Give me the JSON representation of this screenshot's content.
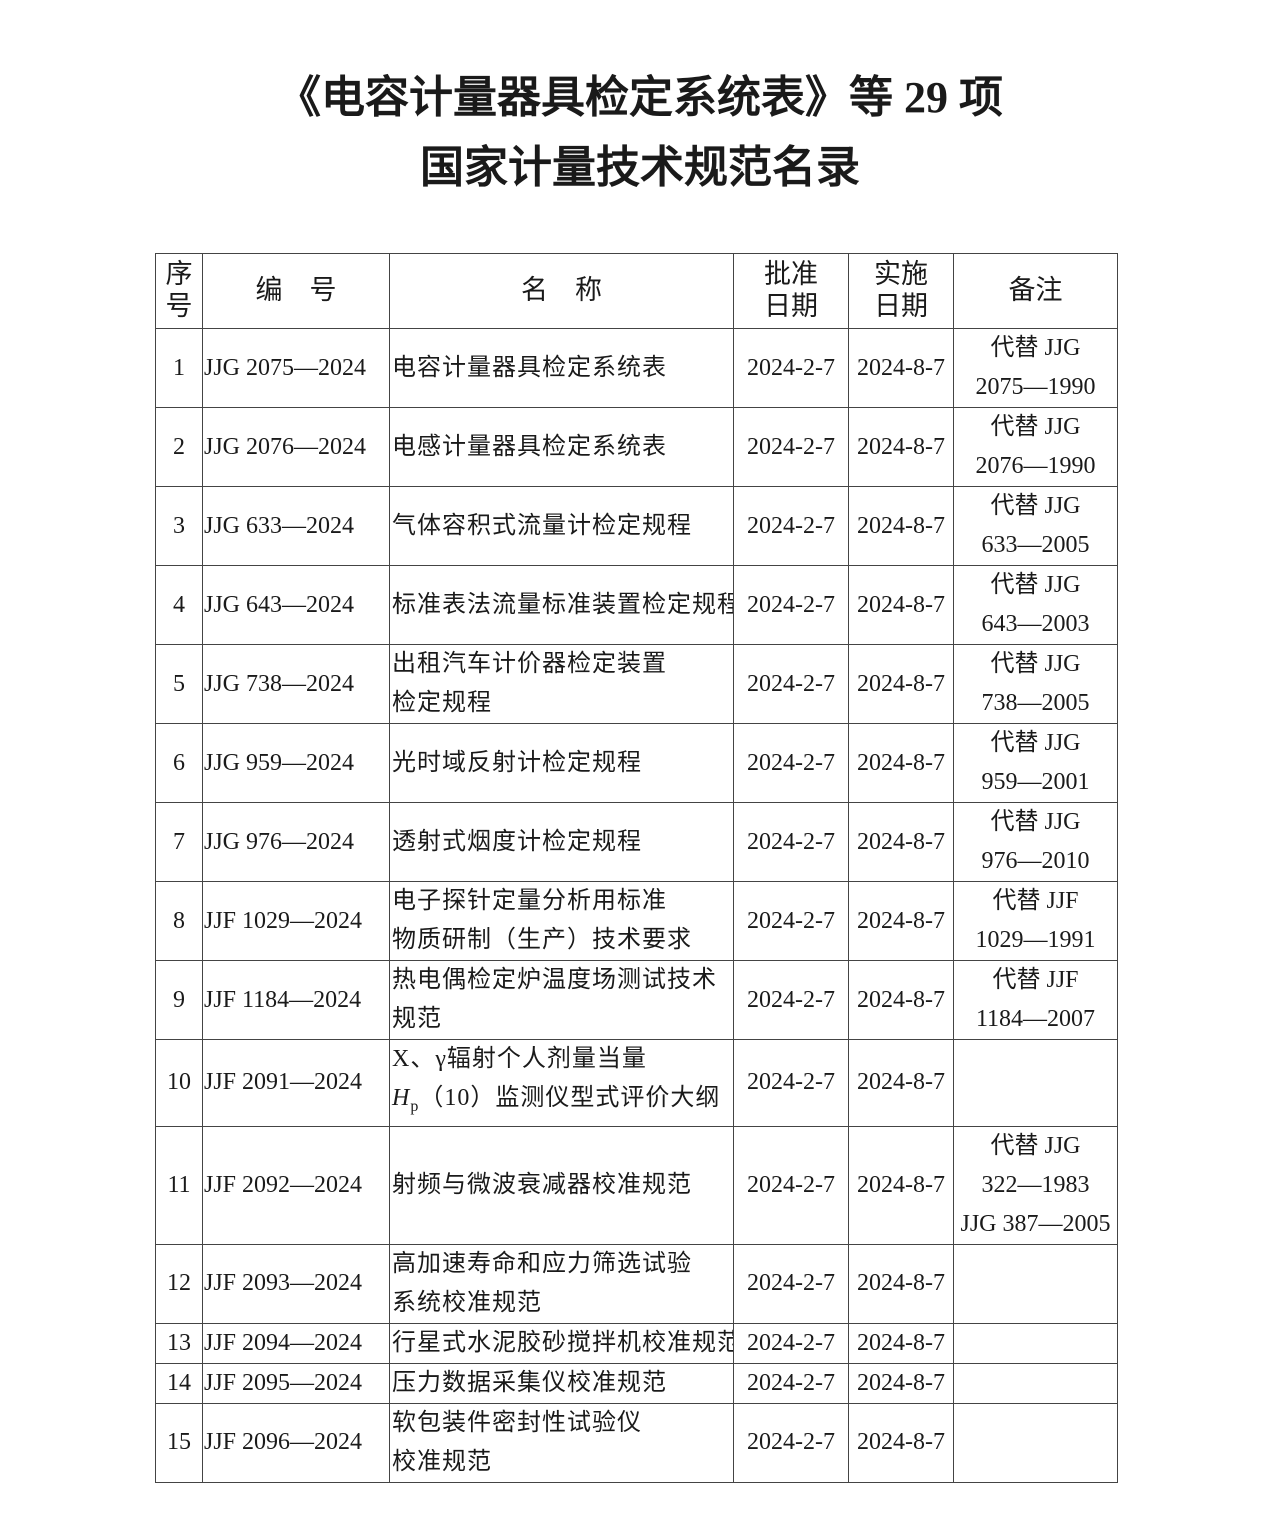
{
  "title": {
    "line1": "《电容计量器具检定系统表》等 29 项",
    "line2": "国家计量技术规范名录"
  },
  "table": {
    "headers": {
      "seq": [
        "序",
        "号"
      ],
      "code": "编　号",
      "name": "名　称",
      "approve": [
        "批准",
        "日期"
      ],
      "implement": [
        "实施",
        "日期"
      ],
      "remark": "备注"
    },
    "rows": [
      {
        "seq": "1",
        "code": "JJG 2075—2024",
        "name": [
          "电容计量器具检定系统表"
        ],
        "approve": "2024-2-7",
        "implement": "2024-8-7",
        "remark": [
          "代替 JJG",
          "2075—1990"
        ]
      },
      {
        "seq": "2",
        "code": "JJG 2076—2024",
        "name": [
          "电感计量器具检定系统表"
        ],
        "approve": "2024-2-7",
        "implement": "2024-8-7",
        "remark": [
          "代替 JJG",
          "2076—1990"
        ]
      },
      {
        "seq": "3",
        "code": "JJG 633—2024",
        "name": [
          "气体容积式流量计检定规程"
        ],
        "approve": "2024-2-7",
        "implement": "2024-8-7",
        "remark": [
          "代替 JJG",
          "633—2005"
        ]
      },
      {
        "seq": "4",
        "code": "JJG 643—2024",
        "name": [
          "标准表法流量标准装置检定规程"
        ],
        "approve": "2024-2-7",
        "implement": "2024-8-7",
        "remark": [
          "代替 JJG",
          "643—2003"
        ]
      },
      {
        "seq": "5",
        "code": "JJG 738—2024",
        "name": [
          "出租汽车计价器检定装置",
          "检定规程"
        ],
        "approve": "2024-2-7",
        "implement": "2024-8-7",
        "remark": [
          "代替 JJG",
          "738—2005"
        ]
      },
      {
        "seq": "6",
        "code": "JJG 959—2024",
        "name": [
          "光时域反射计检定规程"
        ],
        "approve": "2024-2-7",
        "implement": "2024-8-7",
        "remark": [
          "代替 JJG",
          "959—2001"
        ]
      },
      {
        "seq": "7",
        "code": "JJG 976—2024",
        "name": [
          "透射式烟度计检定规程"
        ],
        "approve": "2024-2-7",
        "implement": "2024-8-7",
        "remark": [
          "代替 JJG",
          "976—2010"
        ]
      },
      {
        "seq": "8",
        "code": "JJF 1029—2024",
        "name": [
          "电子探针定量分析用标准",
          "物质研制（生产）技术要求"
        ],
        "approve": "2024-2-7",
        "implement": "2024-8-7",
        "remark": [
          "代替 JJF",
          "1029—1991"
        ]
      },
      {
        "seq": "9",
        "code": "JJF 1184—2024",
        "name": [
          "热电偶检定炉温度场测试技术",
          "规范"
        ],
        "approve": "2024-2-7",
        "implement": "2024-8-7",
        "remark": [
          "代替 JJF",
          "1184—2007"
        ]
      },
      {
        "seq": "10",
        "code": "JJF 2091—2024",
        "name": [
          "X、γ辐射个人剂量当量"
        ],
        "name_hp": {
          "symbol": "H",
          "sub": "p",
          "rest": "（10）监测仪型式评价大纲"
        },
        "approve": "2024-2-7",
        "implement": "2024-8-7",
        "remark": []
      },
      {
        "seq": "11",
        "code": "JJF 2092—2024",
        "name": [
          "射频与微波衰减器校准规范"
        ],
        "approve": "2024-2-7",
        "implement": "2024-8-7",
        "remark": [
          "代替 JJG",
          "322—1983",
          "JJG 387—2005"
        ]
      },
      {
        "seq": "12",
        "code": "JJF 2093—2024",
        "name": [
          "高加速寿命和应力筛选试验",
          "系统校准规范"
        ],
        "approve": "2024-2-7",
        "implement": "2024-8-7",
        "remark": []
      },
      {
        "seq": "13",
        "code": "JJF 2094—2024",
        "name": [
          "行星式水泥胶砂搅拌机校准规范"
        ],
        "approve": "2024-2-7",
        "implement": "2024-8-7",
        "remark": []
      },
      {
        "seq": "14",
        "code": "JJF 2095—2024",
        "name": [
          "压力数据采集仪校准规范"
        ],
        "approve": "2024-2-7",
        "implement": "2024-8-7",
        "remark": []
      },
      {
        "seq": "15",
        "code": "JJF 2096—2024",
        "name": [
          "软包装件密封性试验仪",
          "校准规范"
        ],
        "approve": "2024-2-7",
        "implement": "2024-8-7",
        "remark": []
      }
    ]
  }
}
